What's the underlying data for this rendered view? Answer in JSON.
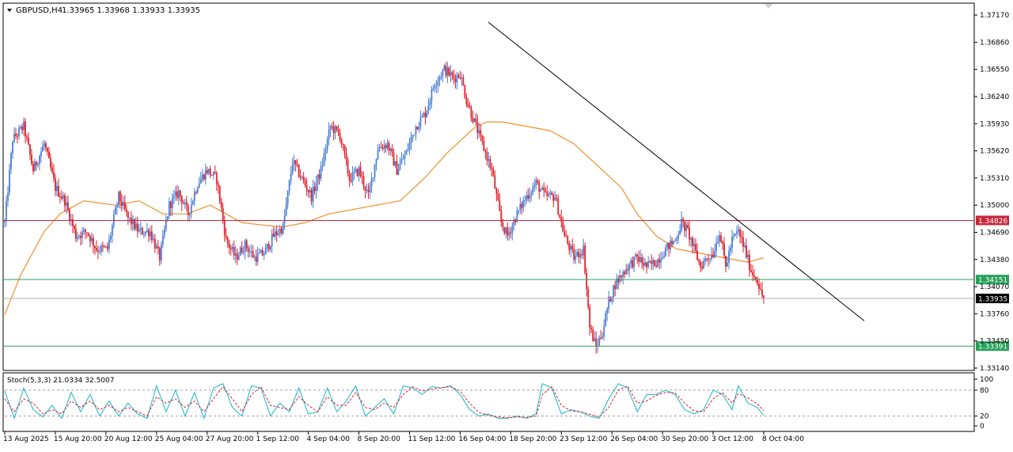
{
  "header": {
    "symbol": "GBPUSD,H4",
    "ohlc": "1.33965 1.33968 1.33933 1.33935"
  },
  "colors": {
    "bull": "#4a7fd6",
    "bear": "#e0202a",
    "ma": "#f0902a",
    "stoch_main": "#18b6c6",
    "stoch_signal": "#d8242e",
    "resistance": "#c8283a",
    "support": "#27a05a",
    "current": "#000000",
    "trendline": "#000000"
  },
  "price_axis": {
    "ticks": [
      "1.37170",
      "1.36860",
      "1.36550",
      "1.36240",
      "1.35930",
      "1.35620",
      "1.35310",
      "1.35000",
      "1.34690",
      "1.34380",
      "1.34070",
      "1.33760",
      "1.33450",
      "1.33140"
    ],
    "tick_values": [
      1.3717,
      1.3686,
      1.3655,
      1.3624,
      1.3593,
      1.3562,
      1.3531,
      1.35,
      1.3469,
      1.3438,
      1.3407,
      1.3376,
      1.3345,
      1.3314
    ],
    "min": 1.3314,
    "max": 1.3727
  },
  "levels": {
    "resistance": {
      "value": 1.34826,
      "label": "1.34826"
    },
    "support_upper": {
      "value": 1.34151,
      "label": "1.34151"
    },
    "support_lower": {
      "value": 1.33391,
      "label": "1.33391"
    },
    "current": {
      "value": 1.33935,
      "label": "1.33935"
    }
  },
  "time_axis": {
    "labels": [
      "13 Aug 2025",
      "15 Aug 20:00",
      "20 Aug 12:00",
      "25 Aug 04:00",
      "27 Aug 20:00",
      "1 Sep 12:00",
      "4 Sep 04:00",
      "8 Sep 20:00",
      "11 Sep 12:00",
      "16 Sep 04:00",
      "18 Sep 20:00",
      "23 Sep 12:00",
      "26 Sep 04:00",
      "30 Sep 20:00",
      "3 Oct 12:00",
      "8 Oct 04:00"
    ]
  },
  "indicator": {
    "label": "Stoch(5,3,3) 21.0334 32.5007",
    "ticks": [
      "100",
      "80",
      "20",
      "0"
    ],
    "tick_values": [
      100,
      80,
      20,
      0
    ]
  },
  "chart_data": {
    "type": "candlestick",
    "symbol": "GBPUSD",
    "timeframe": "H4",
    "ylim": [
      1.3314,
      1.3727
    ],
    "anchors": [
      [
        0,
        1.348
      ],
      [
        5,
        1.3575
      ],
      [
        12,
        1.359
      ],
      [
        18,
        1.354
      ],
      [
        25,
        1.357
      ],
      [
        32,
        1.352
      ],
      [
        38,
        1.3505
      ],
      [
        45,
        1.3465
      ],
      [
        52,
        1.347
      ],
      [
        58,
        1.345
      ],
      [
        65,
        1.345
      ],
      [
        72,
        1.351
      ],
      [
        78,
        1.3485
      ],
      [
        85,
        1.347
      ],
      [
        92,
        1.347
      ],
      [
        98,
        1.344
      ],
      [
        104,
        1.35
      ],
      [
        110,
        1.3515
      ],
      [
        116,
        1.349
      ],
      [
        122,
        1.3525
      ],
      [
        128,
        1.354
      ],
      [
        134,
        1.353
      ],
      [
        140,
        1.346
      ],
      [
        146,
        1.344
      ],
      [
        152,
        1.3455
      ],
      [
        158,
        1.344
      ],
      [
        164,
        1.3445
      ],
      [
        170,
        1.3465
      ],
      [
        176,
        1.3475
      ],
      [
        182,
        1.355
      ],
      [
        188,
        1.353
      ],
      [
        194,
        1.351
      ],
      [
        200,
        1.354
      ],
      [
        206,
        1.359
      ],
      [
        212,
        1.358
      ],
      [
        218,
        1.353
      ],
      [
        224,
        1.354
      ],
      [
        230,
        1.351
      ],
      [
        236,
        1.3565
      ],
      [
        242,
        1.357
      ],
      [
        248,
        1.354
      ],
      [
        254,
        1.356
      ],
      [
        260,
        1.359
      ],
      [
        266,
        1.3605
      ],
      [
        272,
        1.364
      ],
      [
        278,
        1.3655
      ],
      [
        284,
        1.3645
      ],
      [
        288,
        1.365
      ],
      [
        292,
        1.362
      ],
      [
        296,
        1.36
      ],
      [
        300,
        1.358
      ],
      [
        304,
        1.356
      ],
      [
        308,
        1.354
      ],
      [
        314,
        1.348
      ],
      [
        318,
        1.3465
      ],
      [
        324,
        1.349
      ],
      [
        330,
        1.351
      ],
      [
        336,
        1.3525
      ],
      [
        342,
        1.351
      ],
      [
        348,
        1.351
      ],
      [
        354,
        1.3465
      ],
      [
        360,
        1.344
      ],
      [
        366,
        1.345
      ],
      [
        370,
        1.336
      ],
      [
        374,
        1.3338
      ],
      [
        378,
        1.3355
      ],
      [
        382,
        1.339
      ],
      [
        386,
        1.341
      ],
      [
        390,
        1.342
      ],
      [
        394,
        1.343
      ],
      [
        400,
        1.344
      ],
      [
        406,
        1.343
      ],
      [
        412,
        1.3435
      ],
      [
        418,
        1.345
      ],
      [
        424,
        1.346
      ],
      [
        428,
        1.348
      ],
      [
        432,
        1.347
      ],
      [
        436,
        1.345
      ],
      [
        440,
        1.343
      ],
      [
        444,
        1.344
      ],
      [
        448,
        1.3445
      ],
      [
        452,
        1.347
      ],
      [
        456,
        1.343
      ],
      [
        460,
        1.346
      ],
      [
        464,
        1.347
      ],
      [
        468,
        1.345
      ],
      [
        472,
        1.3425
      ],
      [
        476,
        1.3415
      ],
      [
        478,
        1.34
      ],
      [
        480,
        1.33935
      ]
    ],
    "moving_average": [
      [
        0,
        1.3375
      ],
      [
        10,
        1.342
      ],
      [
        25,
        1.347
      ],
      [
        35,
        1.349
      ],
      [
        50,
        1.3505
      ],
      [
        70,
        1.35
      ],
      [
        85,
        1.3505
      ],
      [
        100,
        1.349
      ],
      [
        115,
        1.349
      ],
      [
        130,
        1.35
      ],
      [
        150,
        1.348
      ],
      [
        175,
        1.3475
      ],
      [
        190,
        1.348
      ],
      [
        205,
        1.349
      ],
      [
        220,
        1.3495
      ],
      [
        235,
        1.35
      ],
      [
        250,
        1.3505
      ],
      [
        265,
        1.353
      ],
      [
        280,
        1.356
      ],
      [
        292,
        1.358
      ],
      [
        298,
        1.359
      ],
      [
        305,
        1.3595
      ],
      [
        315,
        1.3595
      ],
      [
        330,
        1.359
      ],
      [
        345,
        1.3585
      ],
      [
        360,
        1.357
      ],
      [
        375,
        1.3545
      ],
      [
        390,
        1.352
      ],
      [
        400,
        1.349
      ],
      [
        412,
        1.3465
      ],
      [
        425,
        1.345
      ],
      [
        440,
        1.3445
      ],
      [
        455,
        1.344
      ],
      [
        470,
        1.3435
      ],
      [
        480,
        1.344
      ]
    ],
    "stochastic": {
      "main": [
        [
          0,
          78
        ],
        [
          6,
          15
        ],
        [
          12,
          85
        ],
        [
          18,
          35
        ],
        [
          24,
          18
        ],
        [
          30,
          45
        ],
        [
          36,
          15
        ],
        [
          42,
          75
        ],
        [
          48,
          30
        ],
        [
          54,
          70
        ],
        [
          60,
          20
        ],
        [
          66,
          55
        ],
        [
          72,
          20
        ],
        [
          78,
          50
        ],
        [
          84,
          25
        ],
        [
          90,
          15
        ],
        [
          96,
          90
        ],
        [
          102,
          30
        ],
        [
          108,
          80
        ],
        [
          114,
          20
        ],
        [
          120,
          75
        ],
        [
          126,
          15
        ],
        [
          132,
          85
        ],
        [
          138,
          95
        ],
        [
          144,
          40
        ],
        [
          150,
          20
        ],
        [
          156,
          90
        ],
        [
          162,
          85
        ],
        [
          168,
          20
        ],
        [
          174,
          50
        ],
        [
          180,
          30
        ],
        [
          186,
          85
        ],
        [
          192,
          25
        ],
        [
          198,
          30
        ],
        [
          204,
          85
        ],
        [
          210,
          30
        ],
        [
          216,
          55
        ],
        [
          222,
          90
        ],
        [
          228,
          20
        ],
        [
          234,
          40
        ],
        [
          240,
          60
        ],
        [
          246,
          25
        ],
        [
          252,
          90
        ],
        [
          258,
          85
        ],
        [
          264,
          70
        ],
        [
          270,
          88
        ],
        [
          276,
          85
        ],
        [
          282,
          90
        ],
        [
          288,
          70
        ],
        [
          294,
          35
        ],
        [
          300,
          20
        ],
        [
          306,
          25
        ],
        [
          312,
          15
        ],
        [
          318,
          15
        ],
        [
          324,
          20
        ],
        [
          330,
          15
        ],
        [
          336,
          25
        ],
        [
          340,
          95
        ],
        [
          346,
          85
        ],
        [
          352,
          25
        ],
        [
          358,
          35
        ],
        [
          364,
          30
        ],
        [
          370,
          20
        ],
        [
          376,
          15
        ],
        [
          382,
          60
        ],
        [
          388,
          95
        ],
        [
          394,
          85
        ],
        [
          400,
          30
        ],
        [
          406,
          70
        ],
        [
          412,
          70
        ],
        [
          418,
          80
        ],
        [
          424,
          70
        ],
        [
          430,
          35
        ],
        [
          436,
          25
        ],
        [
          442,
          35
        ],
        [
          448,
          80
        ],
        [
          454,
          70
        ],
        [
          460,
          35
        ],
        [
          464,
          90
        ],
        [
          470,
          50
        ],
        [
          476,
          40
        ],
        [
          480,
          21
        ]
      ],
      "signal": [
        [
          0,
          60
        ],
        [
          6,
          30
        ],
        [
          12,
          60
        ],
        [
          18,
          50
        ],
        [
          24,
          25
        ],
        [
          30,
          35
        ],
        [
          36,
          25
        ],
        [
          42,
          55
        ],
        [
          48,
          40
        ],
        [
          54,
          55
        ],
        [
          60,
          35
        ],
        [
          66,
          45
        ],
        [
          72,
          30
        ],
        [
          78,
          40
        ],
        [
          84,
          30
        ],
        [
          90,
          20
        ],
        [
          96,
          65
        ],
        [
          102,
          50
        ],
        [
          108,
          60
        ],
        [
          114,
          40
        ],
        [
          120,
          55
        ],
        [
          126,
          30
        ],
        [
          132,
          60
        ],
        [
          138,
          88
        ],
        [
          144,
          60
        ],
        [
          150,
          30
        ],
        [
          156,
          70
        ],
        [
          162,
          88
        ],
        [
          168,
          45
        ],
        [
          174,
          40
        ],
        [
          180,
          35
        ],
        [
          186,
          65
        ],
        [
          192,
          45
        ],
        [
          198,
          30
        ],
        [
          204,
          65
        ],
        [
          210,
          45
        ],
        [
          216,
          45
        ],
        [
          222,
          75
        ],
        [
          228,
          40
        ],
        [
          234,
          35
        ],
        [
          240,
          50
        ],
        [
          246,
          40
        ],
        [
          252,
          70
        ],
        [
          258,
          88
        ],
        [
          264,
          78
        ],
        [
          270,
          82
        ],
        [
          276,
          86
        ],
        [
          282,
          88
        ],
        [
          288,
          78
        ],
        [
          294,
          50
        ],
        [
          300,
          28
        ],
        [
          306,
          22
        ],
        [
          312,
          18
        ],
        [
          318,
          16
        ],
        [
          324,
          18
        ],
        [
          330,
          17
        ],
        [
          336,
          20
        ],
        [
          340,
          70
        ],
        [
          346,
          88
        ],
        [
          352,
          45
        ],
        [
          358,
          32
        ],
        [
          364,
          30
        ],
        [
          370,
          24
        ],
        [
          376,
          18
        ],
        [
          382,
          40
        ],
        [
          388,
          80
        ],
        [
          394,
          90
        ],
        [
          400,
          50
        ],
        [
          406,
          55
        ],
        [
          412,
          68
        ],
        [
          418,
          75
        ],
        [
          424,
          74
        ],
        [
          430,
          50
        ],
        [
          436,
          32
        ],
        [
          442,
          30
        ],
        [
          448,
          60
        ],
        [
          454,
          75
        ],
        [
          460,
          50
        ],
        [
          464,
          72
        ],
        [
          470,
          62
        ],
        [
          476,
          48
        ],
        [
          480,
          32.5
        ]
      ]
    }
  }
}
